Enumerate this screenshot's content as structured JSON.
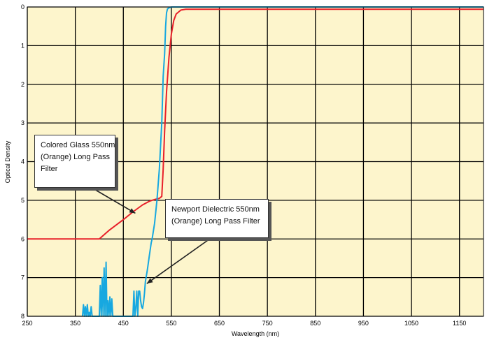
{
  "chart_data": {
    "type": "line",
    "xlabel": "Wavelength (nm)",
    "ylabel": "Optical Density",
    "xlim": [
      250,
      1200
    ],
    "ylim": [
      8,
      0
    ],
    "y_inverted": true,
    "x_ticks": [
      250,
      350,
      450,
      550,
      650,
      750,
      850,
      950,
      1050,
      1150
    ],
    "y_ticks": [
      0,
      1,
      2,
      3,
      4,
      5,
      6,
      7,
      8
    ],
    "grid": true,
    "background_color": "#fdf5cc",
    "series": [
      {
        "name": "Colored Glass 550nm (Orange) Long Pass Filter",
        "color": "#e8202a",
        "x": [
          250,
          400,
          420,
          450,
          470,
          490,
          505,
          515,
          525,
          530,
          533,
          536,
          540,
          545,
          550,
          555,
          560,
          570,
          580,
          600,
          700,
          800,
          900,
          1000,
          1100,
          1200
        ],
        "y": [
          6.0,
          6.0,
          5.78,
          5.5,
          5.3,
          5.12,
          5.02,
          4.98,
          4.95,
          4.9,
          4.2,
          3.2,
          2.2,
          1.3,
          0.7,
          0.35,
          0.18,
          0.08,
          0.06,
          0.06,
          0.06,
          0.06,
          0.06,
          0.06,
          0.06,
          0.06
        ]
      },
      {
        "name": "Newport Dielectric 550nm (Orange) Long Pass Filter",
        "color": "#17a8e0",
        "x": [
          365,
          367,
          369,
          371,
          373,
          375,
          377,
          379,
          381,
          383,
          385,
          400,
          402,
          404,
          406,
          408,
          410,
          412,
          414,
          416,
          418,
          420,
          422,
          424,
          426,
          428,
          470,
          472,
          474,
          476,
          478,
          480,
          482,
          484,
          486,
          488,
          490,
          492,
          494,
          496,
          500,
          504,
          508,
          510,
          515,
          520,
          525,
          530,
          533,
          536,
          538,
          540,
          542,
          545,
          548,
          550,
          560,
          600,
          700,
          800,
          900,
          1000,
          1100,
          1200
        ],
        "y": [
          8.0,
          7.7,
          8.0,
          7.75,
          8.0,
          7.7,
          8.0,
          7.9,
          8.0,
          7.75,
          8.0,
          8.0,
          7.2,
          8.0,
          7.0,
          8.0,
          6.75,
          8.0,
          6.6,
          8.0,
          7.6,
          8.0,
          7.5,
          8.0,
          7.55,
          8.0,
          8.0,
          7.35,
          8.0,
          7.8,
          7.35,
          8.0,
          7.35,
          7.35,
          7.6,
          7.75,
          7.8,
          7.65,
          7.4,
          7.1,
          6.8,
          6.45,
          6.1,
          6.0,
          5.6,
          5.0,
          4.2,
          3.0,
          1.8,
          1.2,
          0.5,
          0.15,
          0.05,
          0.02,
          0.01,
          0.0,
          0.0,
          0.0,
          0.0,
          0.0,
          0.0,
          0.0,
          0.0,
          0.0
        ]
      }
    ],
    "annotations": [
      {
        "lines": [
          "Colored Glass 550nm",
          "(Orange) Long Pass",
          "Filter"
        ],
        "points_to": [
          475,
          5.3
        ]
      },
      {
        "lines": [
          "Newport Dielectric 550nm",
          "(Orange) Long Pass Filter"
        ],
        "points_to": [
          496,
          7.1
        ]
      }
    ]
  }
}
